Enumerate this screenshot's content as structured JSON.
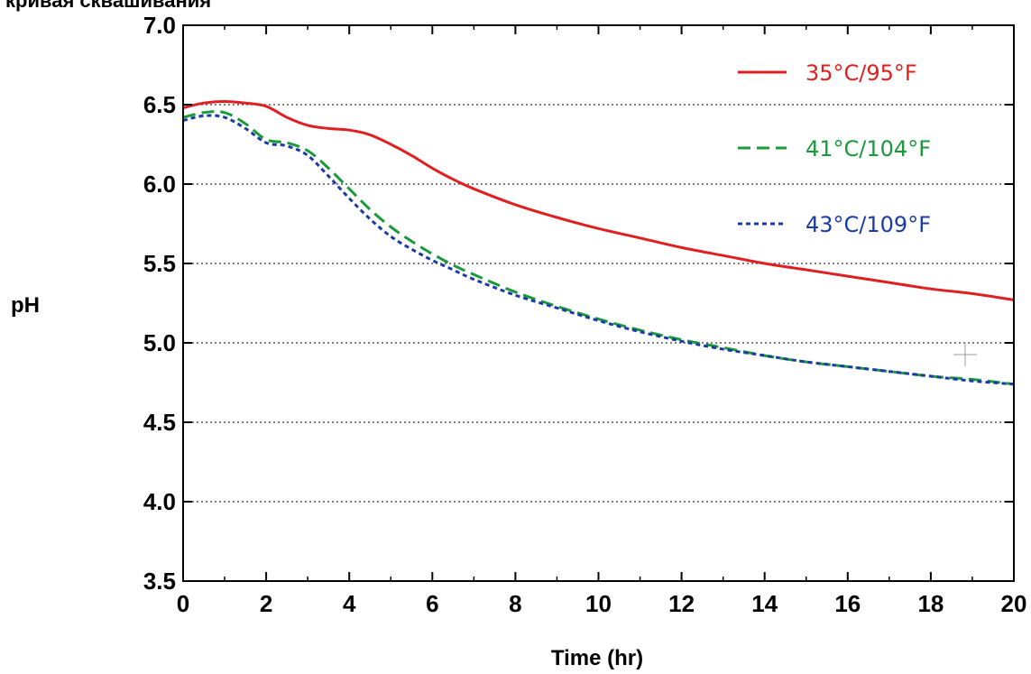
{
  "chart_data": {
    "type": "line",
    "title": "кривая сквашивания",
    "xlabel": "Time (hr)",
    "ylabel": "pH",
    "xlim": [
      0,
      20
    ],
    "ylim": [
      3.5,
      7.0
    ],
    "xticks": [
      0,
      2,
      4,
      6,
      8,
      10,
      12,
      14,
      16,
      18,
      20
    ],
    "yticks": [
      "3.5",
      "4.0",
      "4.5",
      "5.0",
      "5.5",
      "6.0",
      "6.5",
      "7.0"
    ],
    "grid": "horizontal dotted",
    "legend_position": "top-right",
    "series": [
      {
        "name": "35°C/95°F",
        "color": "#e02020",
        "style": "solid",
        "x": [
          0,
          0.5,
          1,
          1.5,
          2,
          2.5,
          3,
          3.5,
          4,
          4.5,
          5,
          5.5,
          6,
          6.5,
          7,
          8,
          9,
          10,
          11,
          12,
          13,
          14,
          15,
          16,
          17,
          18,
          19,
          20
        ],
        "y": [
          6.48,
          6.51,
          6.52,
          6.51,
          6.49,
          6.42,
          6.37,
          6.35,
          6.34,
          6.31,
          6.25,
          6.18,
          6.1,
          6.03,
          5.97,
          5.87,
          5.79,
          5.72,
          5.66,
          5.6,
          5.55,
          5.5,
          5.46,
          5.42,
          5.38,
          5.34,
          5.31,
          5.27
        ]
      },
      {
        "name": "41°C/104°F",
        "color": "#1a9a3a",
        "style": "dashed",
        "x": [
          0,
          0.5,
          1,
          1.5,
          2,
          2.5,
          3,
          3.5,
          4,
          4.5,
          5,
          5.5,
          6,
          6.5,
          7,
          8,
          9,
          10,
          11,
          12,
          13,
          14,
          15,
          16,
          17,
          18,
          19,
          20
        ],
        "y": [
          6.42,
          6.45,
          6.45,
          6.38,
          6.28,
          6.26,
          6.21,
          6.1,
          5.97,
          5.84,
          5.73,
          5.64,
          5.56,
          5.49,
          5.43,
          5.32,
          5.23,
          5.15,
          5.08,
          5.02,
          4.97,
          4.92,
          4.88,
          4.85,
          4.82,
          4.79,
          4.77,
          4.74
        ]
      },
      {
        "name": "43°C/109°F",
        "color": "#1a3aa8",
        "style": "dotted",
        "x": [
          0,
          0.5,
          1,
          1.5,
          2,
          2.5,
          3,
          3.5,
          4,
          4.5,
          5,
          5.5,
          6,
          6.5,
          7,
          8,
          9,
          10,
          11,
          12,
          13,
          14,
          15,
          16,
          17,
          18,
          19,
          20
        ],
        "y": [
          6.4,
          6.43,
          6.42,
          6.35,
          6.26,
          6.24,
          6.18,
          6.05,
          5.91,
          5.78,
          5.67,
          5.59,
          5.52,
          5.46,
          5.4,
          5.3,
          5.22,
          5.14,
          5.07,
          5.01,
          4.96,
          4.92,
          4.88,
          4.85,
          4.82,
          4.79,
          4.76,
          4.74
        ]
      }
    ]
  }
}
